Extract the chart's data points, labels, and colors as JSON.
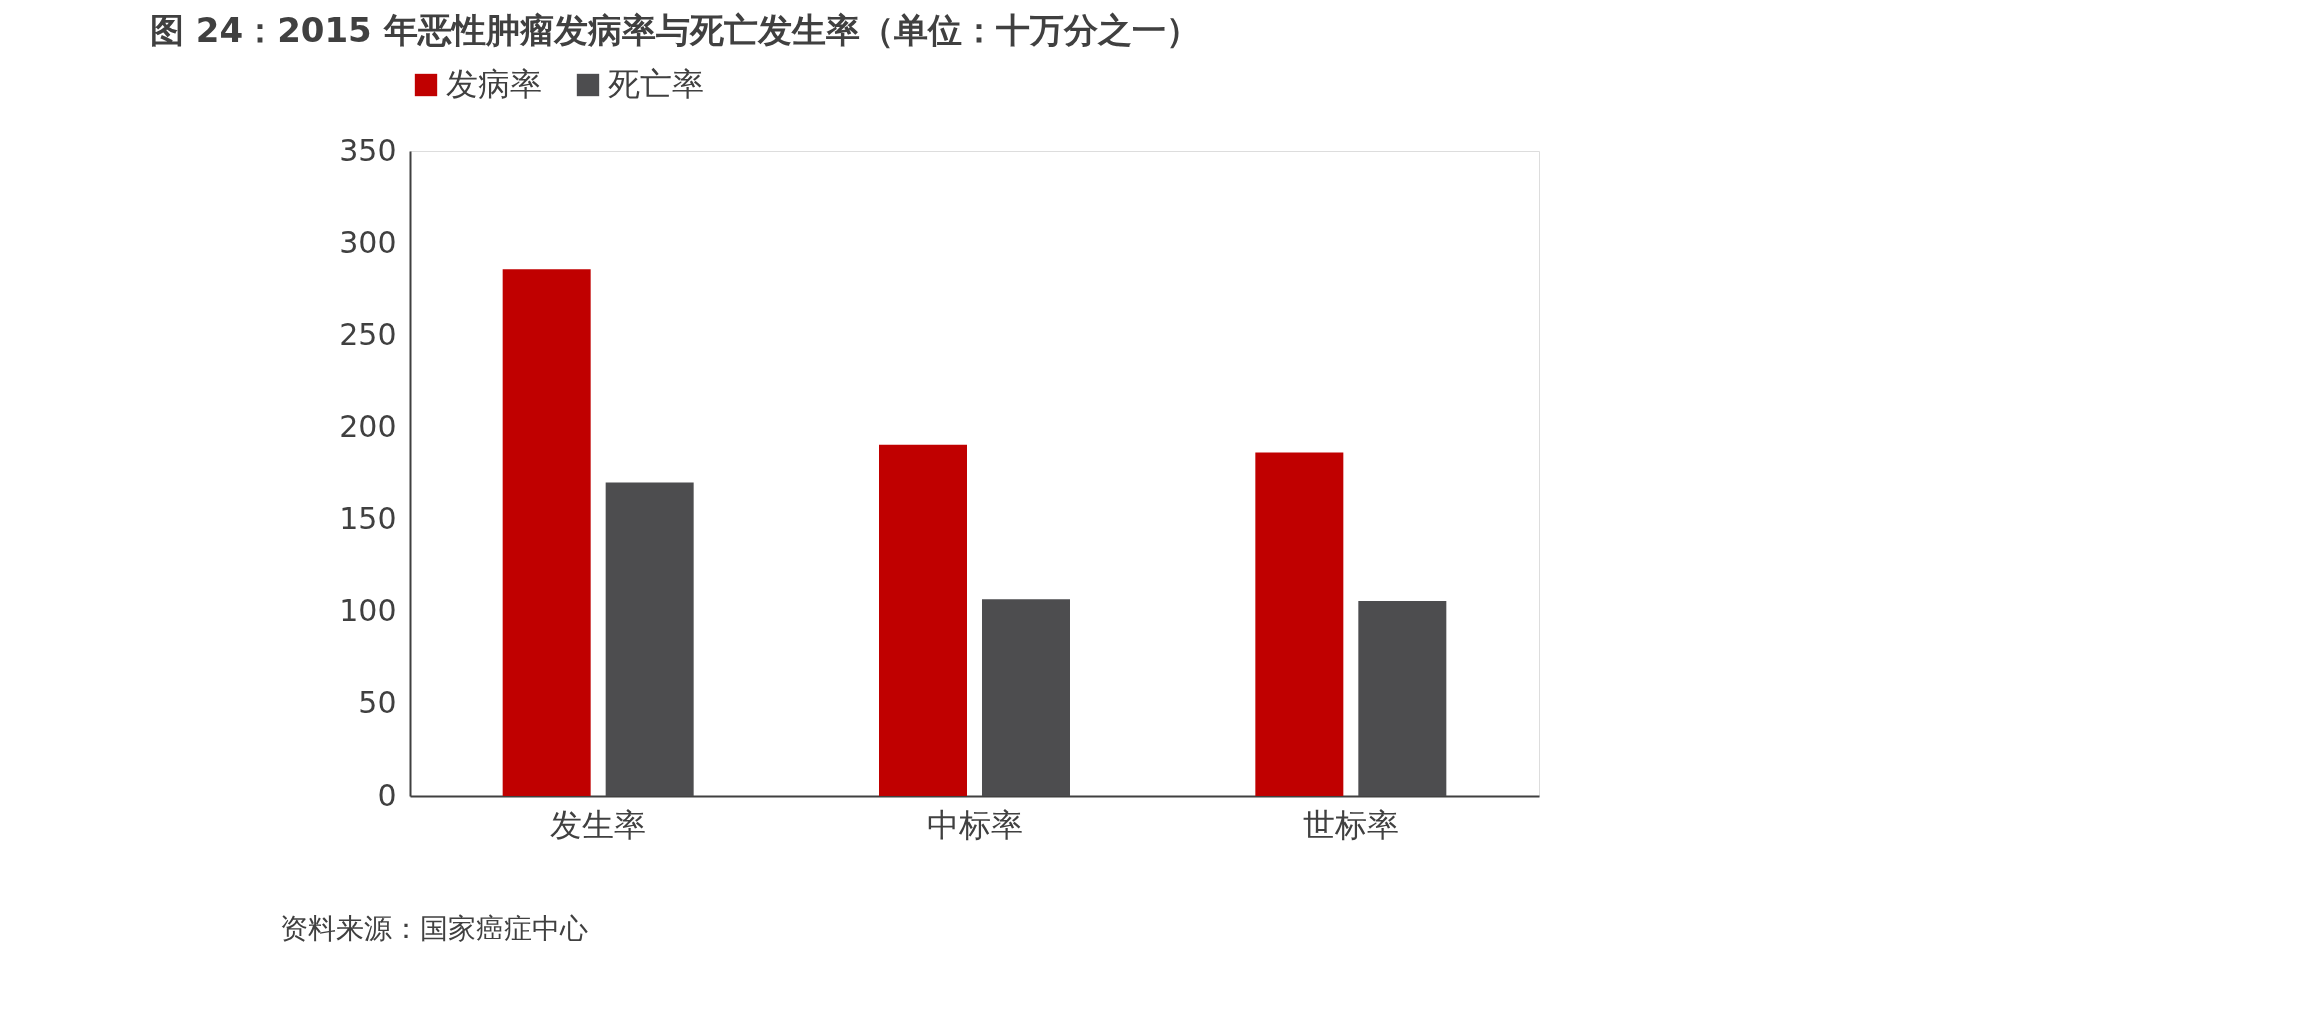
{
  "chart_data": {
    "type": "bar",
    "title": "图 24：2015 年恶性肿瘤发病率与死亡发生率（单位：十万分之一）",
    "categories": [
      "发生率",
      "中标率",
      "世标率"
    ],
    "series": [
      {
        "name": "发病率",
        "color": "#c00000",
        "values": [
          285.8,
          190.6,
          186.4
        ]
      },
      {
        "name": "死亡率",
        "color": "#4d4d4f",
        "values": [
          170.1,
          106.7,
          105.8
        ]
      }
    ],
    "ylim": [
      0,
      350
    ],
    "yticks": [
      0,
      50,
      100,
      150,
      200,
      250,
      300,
      350
    ],
    "grid": false,
    "legend": "top",
    "annotations": [
      "资料来源：国家癌症中心"
    ]
  }
}
